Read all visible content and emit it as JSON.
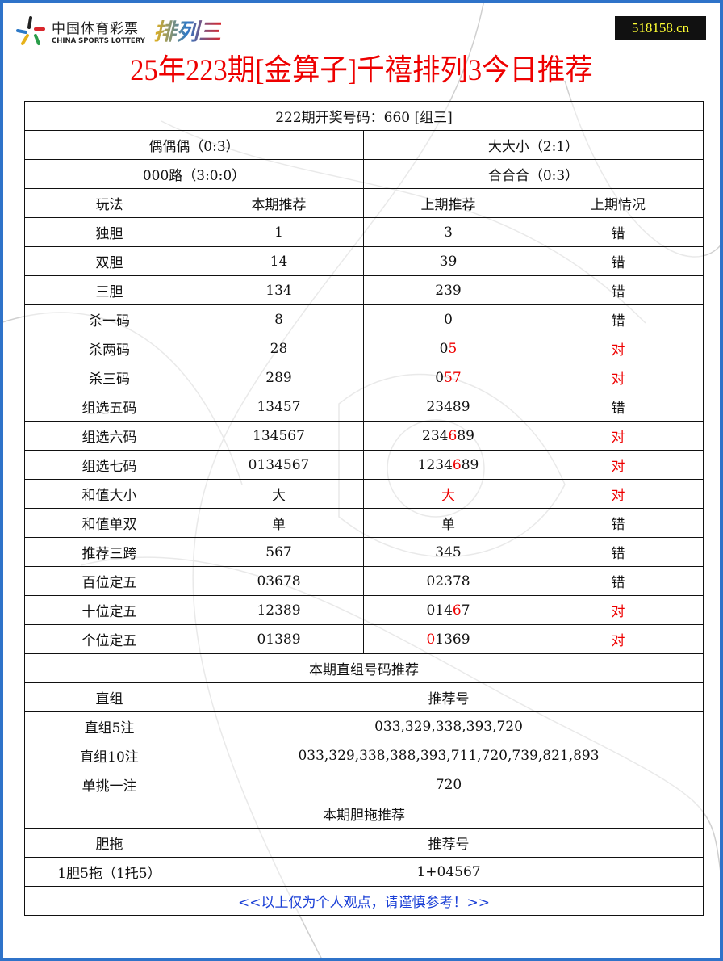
{
  "header": {
    "logo_cn": "中国体育彩票",
    "logo_en": "CHINA SPORTS LOTTERY",
    "logo_game": "排列三",
    "site": "518158.cn",
    "title": "25年223期[金算子]千禧排列3今日推荐"
  },
  "colors": {
    "red": "#ee0000",
    "frame": "#2f73c9",
    "site_bg": "#111111",
    "site_text": "#ffff33"
  },
  "summary": {
    "draw": "222期开奖号码：660 [组三]",
    "odd_even": "偶偶偶（0:3）",
    "big_small": "大大小（2:1）",
    "road": "000路（3:0:0）",
    "prime": "合合合（0:3）"
  },
  "columns": [
    "玩法",
    "本期推荐",
    "上期推荐",
    "上期情况"
  ],
  "rows": [
    {
      "play": "独胆",
      "cur": "1",
      "prev": [
        [
          "3",
          0
        ]
      ],
      "result": "错"
    },
    {
      "play": "双胆",
      "cur": "14",
      "prev": [
        [
          "39",
          0
        ]
      ],
      "result": "错"
    },
    {
      "play": "三胆",
      "cur": "134",
      "prev": [
        [
          "239",
          0
        ]
      ],
      "result": "错"
    },
    {
      "play": "杀一码",
      "cur": "8",
      "prev": [
        [
          "0",
          0
        ]
      ],
      "result": "错"
    },
    {
      "play": "杀两码",
      "cur": "28",
      "prev": [
        [
          "0",
          0
        ],
        [
          "5",
          1
        ]
      ],
      "result": "对"
    },
    {
      "play": "杀三码",
      "cur": "289",
      "prev": [
        [
          "0",
          0
        ],
        [
          "57",
          1
        ]
      ],
      "result": "对"
    },
    {
      "play": "组选五码",
      "cur": "13457",
      "prev": [
        [
          "23489",
          0
        ]
      ],
      "result": "错"
    },
    {
      "play": "组选六码",
      "cur": "134567",
      "prev": [
        [
          "234",
          0
        ],
        [
          "6",
          1
        ],
        [
          "89",
          0
        ]
      ],
      "result": "对"
    },
    {
      "play": "组选七码",
      "cur": "0134567",
      "prev": [
        [
          "1234",
          0
        ],
        [
          "6",
          1
        ],
        [
          "89",
          0
        ]
      ],
      "result": "对"
    },
    {
      "play": "和值大小",
      "cur": "大",
      "prev": [
        [
          "大",
          1
        ]
      ],
      "result": "对"
    },
    {
      "play": "和值单双",
      "cur": "单",
      "prev": [
        [
          "单",
          0
        ]
      ],
      "result": "错"
    },
    {
      "play": "推荐三跨",
      "cur": "567",
      "prev": [
        [
          "345",
          0
        ]
      ],
      "result": "错"
    },
    {
      "play": "百位定五",
      "cur": "03678",
      "prev": [
        [
          "02378",
          0
        ]
      ],
      "result": "错"
    },
    {
      "play": "十位定五",
      "cur": "12389",
      "prev": [
        [
          "014",
          0
        ],
        [
          "6",
          1
        ],
        [
          "7",
          0
        ]
      ],
      "result": "对"
    },
    {
      "play": "个位定五",
      "cur": "01389",
      "prev": [
        [
          "0",
          1
        ],
        [
          "1369",
          0
        ]
      ],
      "result": "对"
    }
  ],
  "direct": {
    "heading": "本期直组号码推荐",
    "col1": "直组",
    "col2": "推荐号",
    "rows": [
      [
        "直组5注",
        "033,329,338,393,720"
      ],
      [
        "直组10注",
        "033,329,338,388,393,711,720,739,821,893"
      ],
      [
        "单挑一注",
        "720"
      ]
    ]
  },
  "dantuo": {
    "heading": "本期胆拖推荐",
    "col1": "胆拖",
    "col2": "推荐号",
    "rows": [
      [
        "1胆5拖（1托5）",
        "1+04567"
      ]
    ]
  },
  "footer": "<<以上仅为个人观点，请谨慎参考！>>"
}
